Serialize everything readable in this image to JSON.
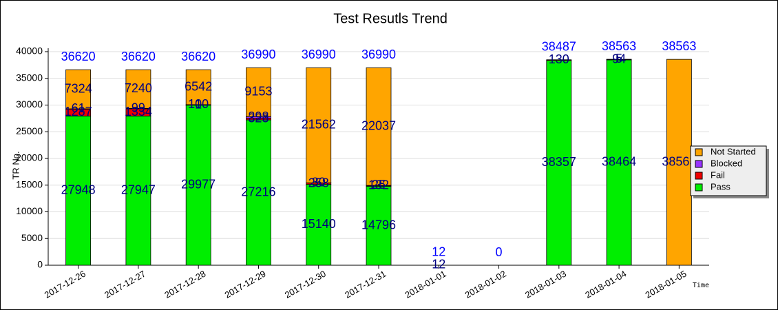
{
  "chart_data": {
    "type": "stacked_bar",
    "title": "Test Resutls Trend",
    "x_label": "Time",
    "y_label": "TR No.",
    "categories": [
      "2017-12-26",
      "2017-12-27",
      "2017-12-28",
      "2017-12-29",
      "2017-12-30",
      "2017-12-31",
      "2018-01-01",
      "2018-01-02",
      "2018-01-03",
      "2018-01-04",
      "2018-01-05"
    ],
    "series": [
      {
        "name": "Pass",
        "color": "#00ee00",
        "values": [
          27948,
          27947,
          29977,
          27216,
          15140,
          14796,
          0,
          0,
          38357,
          38464,
          0
        ]
      },
      {
        "name": "Fail",
        "color": "#ee0000",
        "values": [
          1287,
          1334,
          1,
          323,
          258,
          132,
          0,
          0,
          130,
          94,
          0
        ]
      },
      {
        "name": "Blocked",
        "color": "#9933ff",
        "values": [
          61,
          99,
          100,
          298,
          30,
          25,
          0,
          0,
          0,
          5,
          0
        ]
      },
      {
        "name": "Not Started",
        "color": "#ffa500",
        "values": [
          7324,
          7240,
          6542,
          9153,
          21562,
          22037,
          12,
          0,
          0,
          0,
          38563
        ]
      }
    ],
    "totals": [
      36620,
      36620,
      36620,
      36990,
      36990,
      36990,
      12,
      0,
      38487,
      38563,
      38563
    ],
    "ylim": [
      0,
      40000
    ],
    "yticks": [
      0,
      5000,
      10000,
      15000,
      20000,
      25000,
      30000,
      35000,
      40000
    ],
    "grid": true,
    "legend": "right"
  }
}
